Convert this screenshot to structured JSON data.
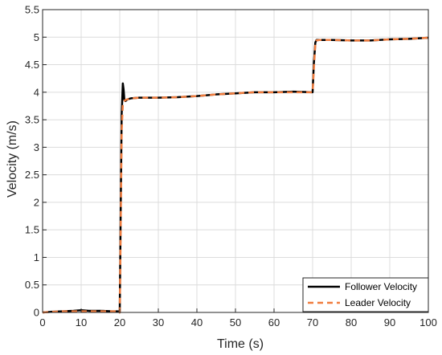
{
  "chart_data": {
    "type": "line",
    "title": "",
    "xlabel": "Time (s)",
    "ylabel": "Velocity (m/s)",
    "xlim": [
      0,
      100
    ],
    "ylim": [
      0,
      5.5
    ],
    "xticks": [
      "0",
      "10",
      "20",
      "30",
      "40",
      "50",
      "60",
      "70",
      "80",
      "90",
      "100"
    ],
    "yticks": [
      "0",
      "0.5",
      "1",
      "1.5",
      "2",
      "2.5",
      "3",
      "3.5",
      "4",
      "4.5",
      "5",
      "5.5"
    ],
    "grid": true,
    "legend_position": "bottom-right",
    "series": [
      {
        "name": "Follower Velocity",
        "color": "#000000",
        "style": "solid",
        "x": [
          0,
          2,
          5,
          8,
          10,
          12,
          15,
          18,
          19.8,
          20.0,
          20.2,
          20.5,
          20.8,
          21.0,
          21.2,
          21.5,
          22,
          23,
          25,
          30,
          35,
          40,
          45,
          50,
          55,
          60,
          65,
          69.8,
          70.0,
          70.3,
          70.7,
          71,
          72,
          75,
          80,
          85,
          90,
          95,
          100
        ],
        "y": [
          0,
          0.01,
          0.02,
          0.03,
          0.04,
          0.03,
          0.03,
          0.02,
          0.02,
          0.0,
          1.5,
          3.6,
          4.16,
          4.05,
          3.86,
          3.84,
          3.87,
          3.89,
          3.9,
          3.9,
          3.91,
          3.93,
          3.96,
          3.98,
          4.0,
          4.0,
          4.01,
          4.0,
          4.0,
          4.5,
          4.9,
          4.95,
          4.95,
          4.95,
          4.94,
          4.94,
          4.96,
          4.97,
          4.99
        ]
      },
      {
        "name": "Leader Velocity",
        "color": "#f07c3e",
        "style": "dashed",
        "x": [
          0,
          2,
          5,
          8,
          10,
          12,
          15,
          18,
          19.8,
          20.0,
          20.2,
          20.5,
          20.8,
          21.0,
          21.5,
          22,
          23,
          25,
          30,
          35,
          40,
          45,
          50,
          55,
          60,
          65,
          69.8,
          70.0,
          70.3,
          70.7,
          71,
          72,
          75,
          80,
          85,
          90,
          95,
          100
        ],
        "y": [
          0,
          0.01,
          0.02,
          0.02,
          0.02,
          0.02,
          0.02,
          0.02,
          0.02,
          0.0,
          1.2,
          3.3,
          3.78,
          3.83,
          3.86,
          3.87,
          3.89,
          3.9,
          3.9,
          3.91,
          3.93,
          3.96,
          3.98,
          4.0,
          4.0,
          4.0,
          4.0,
          4.0,
          4.4,
          4.88,
          4.94,
          4.95,
          4.95,
          4.94,
          4.94,
          4.96,
          4.97,
          4.99
        ]
      }
    ]
  }
}
